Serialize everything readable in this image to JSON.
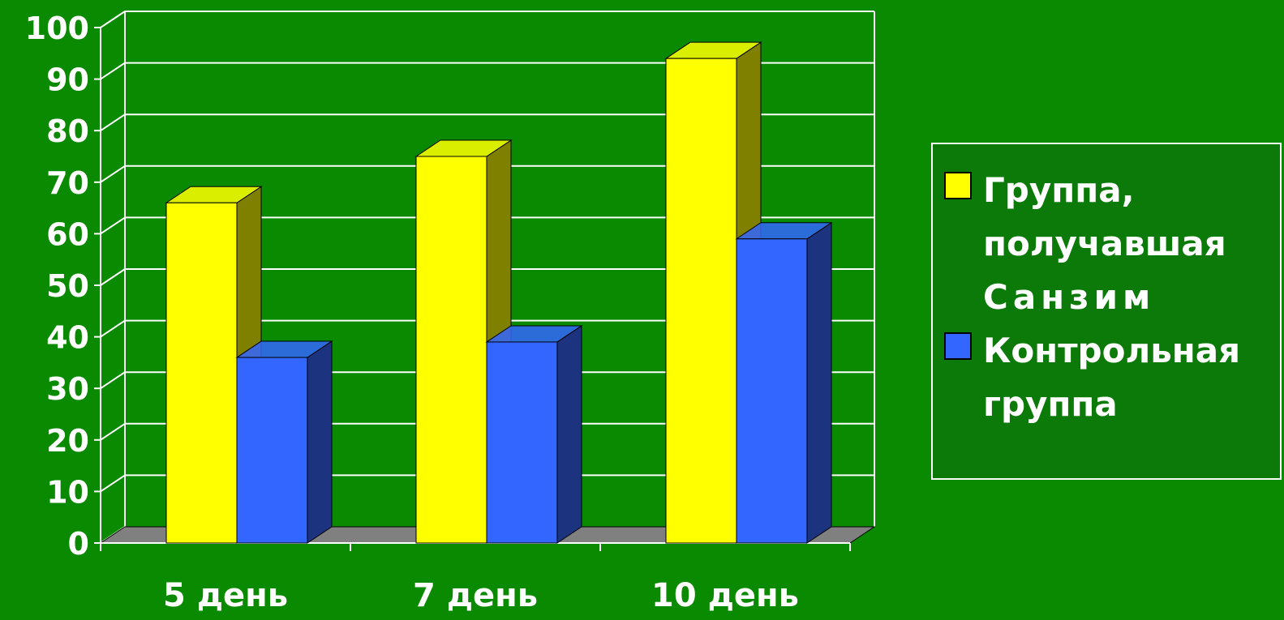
{
  "chart_data": {
    "type": "bar",
    "style": "3d-clustered-column",
    "categories": [
      "5 день",
      "7 день",
      "10 день"
    ],
    "series": [
      {
        "name_lines": [
          "Группа,",
          "получавшая",
          "Санзим"
        ],
        "color": "#ffff00",
        "side_color": "#808000",
        "values": [
          66,
          75,
          94
        ]
      },
      {
        "name_lines": [
          "Контрольная",
          "группа"
        ],
        "color": "#3366ff",
        "side_color": "#1c3380",
        "values": [
          36,
          39,
          59
        ]
      }
    ],
    "yticks": [
      "0",
      "10",
      "20",
      "30",
      "40",
      "50",
      "60",
      "70",
      "80",
      "90",
      "100"
    ],
    "ylim": [
      0,
      100
    ],
    "grid": true,
    "legend_position": "right"
  },
  "colors": {
    "background": "#0a8a00",
    "gridline": "#ffffff",
    "floor": "#808080"
  }
}
